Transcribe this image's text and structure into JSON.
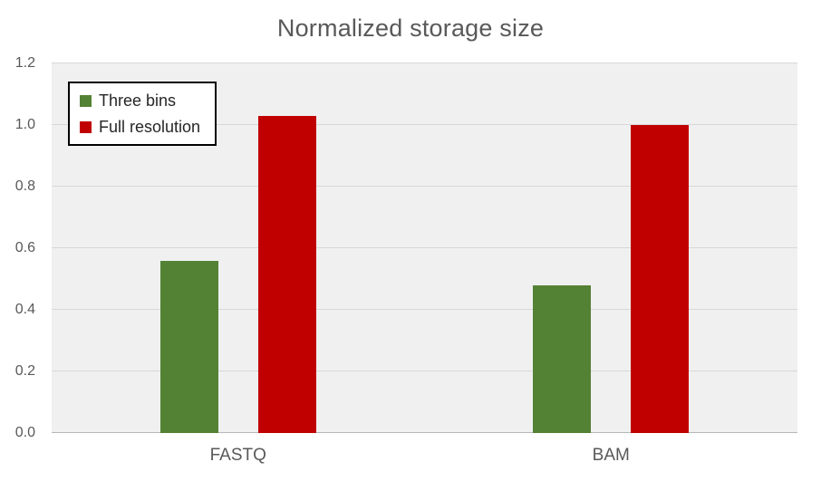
{
  "chart_data": {
    "type": "bar",
    "title": "Normalized storage size",
    "categories": [
      "FASTQ",
      "BAM"
    ],
    "series": [
      {
        "name": "Three bins",
        "color": "#548235",
        "values": [
          0.56,
          0.48
        ]
      },
      {
        "name": "Full resolution",
        "color": "#c00000",
        "values": [
          1.03,
          1.0
        ]
      }
    ],
    "ylim": [
      0,
      1.2
    ],
    "yticks": [
      0,
      0.2,
      0.4,
      0.6,
      0.8,
      1.0,
      1.2
    ],
    "ytick_labels": [
      "0.0",
      "0.2",
      "0.4",
      "0.6",
      "0.8",
      "1.0",
      "1.2"
    ],
    "grid": true,
    "legend_position": "top-left",
    "plot_background": "#f0f0f0",
    "gridline_color": "#d8d8d8",
    "axis_line_color": "#b7b7b7",
    "text_color": "#595959"
  }
}
